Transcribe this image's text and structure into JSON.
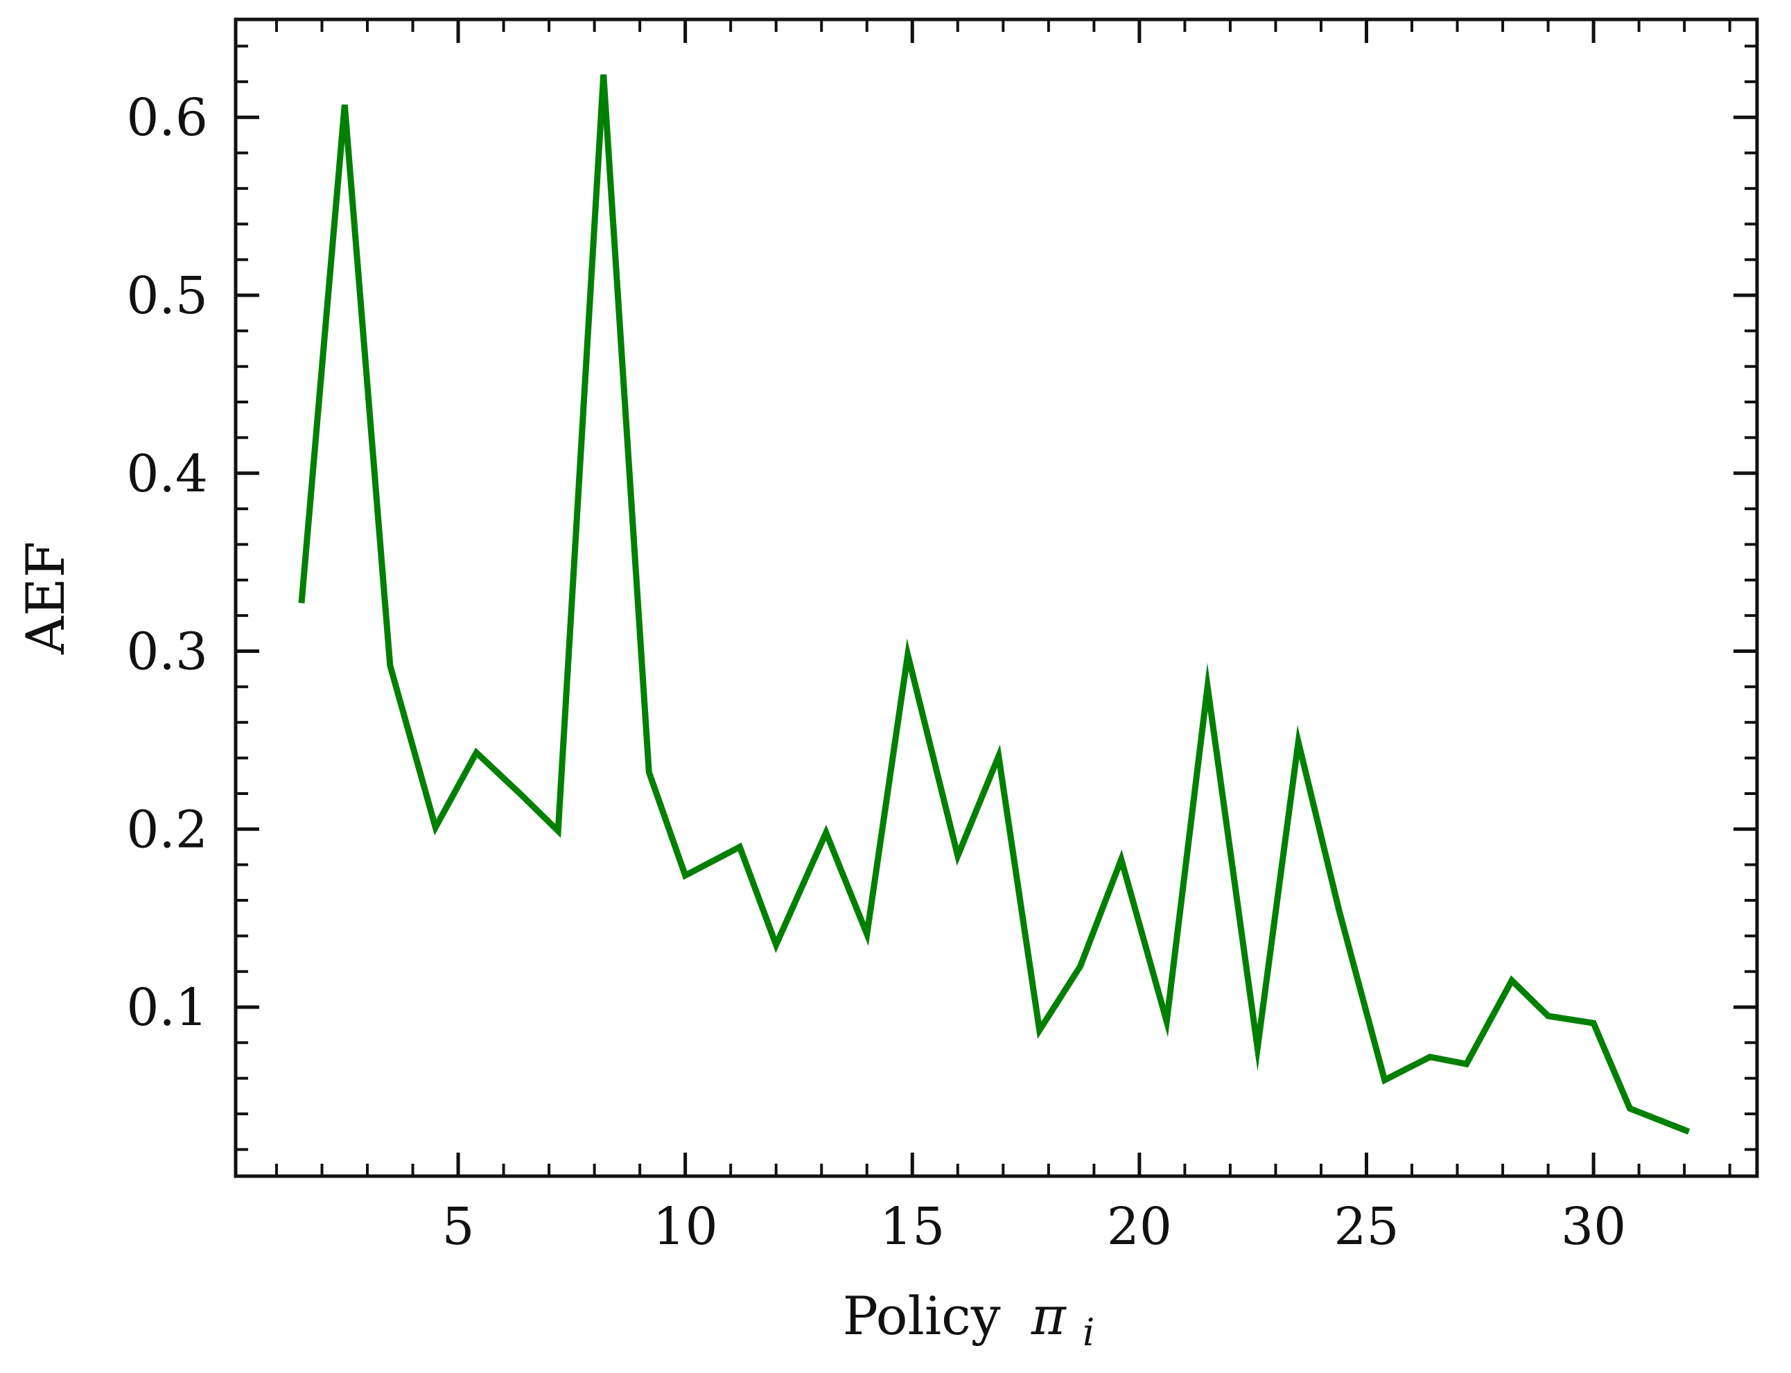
{
  "chart_data": {
    "type": "line",
    "title": "",
    "xlabel": "Policy",
    "xlabel_math": "π",
    "xlabel_subscript": "i",
    "ylabel": "AEF",
    "xlim": [
      0.1,
      33.6
    ],
    "ylim": [
      0.005,
      0.655
    ],
    "xticks": [
      5,
      10,
      15,
      20,
      25,
      30
    ],
    "xtick_labels": [
      "5",
      "10",
      "15",
      "20",
      "25",
      "30"
    ],
    "yticks": [
      0.1,
      0.2,
      0.3,
      0.4,
      0.5,
      0.6
    ],
    "ytick_labels": [
      "0.1",
      "0.2",
      "0.3",
      "0.4",
      "0.5",
      "0.6"
    ],
    "x_minor_step": 1,
    "y_minor_step": 0.02,
    "grid": false,
    "legend": "none",
    "series": [
      {
        "color": "#008000",
        "x": [
          1.55,
          2.5,
          3.5,
          4.5,
          5.4,
          6.4,
          7.2,
          8.2,
          9.2,
          10.0,
          11.2,
          12.0,
          13.1,
          14.0,
          14.9,
          16.0,
          16.9,
          17.8,
          18.7,
          19.6,
          20.6,
          21.5,
          22.6,
          23.5,
          24.4,
          25.4,
          26.4,
          27.2,
          28.2,
          29.0,
          30.0,
          30.8,
          32.1
        ],
        "y": [
          0.327,
          0.607,
          0.292,
          0.201,
          0.243,
          0.219,
          0.199,
          0.624,
          0.232,
          0.174,
          0.19,
          0.135,
          0.198,
          0.141,
          0.298,
          0.185,
          0.241,
          0.087,
          0.123,
          0.183,
          0.092,
          0.28,
          0.077,
          0.249,
          0.154,
          0.059,
          0.072,
          0.068,
          0.115,
          0.095,
          0.091,
          0.043,
          0.03
        ]
      }
    ]
  }
}
